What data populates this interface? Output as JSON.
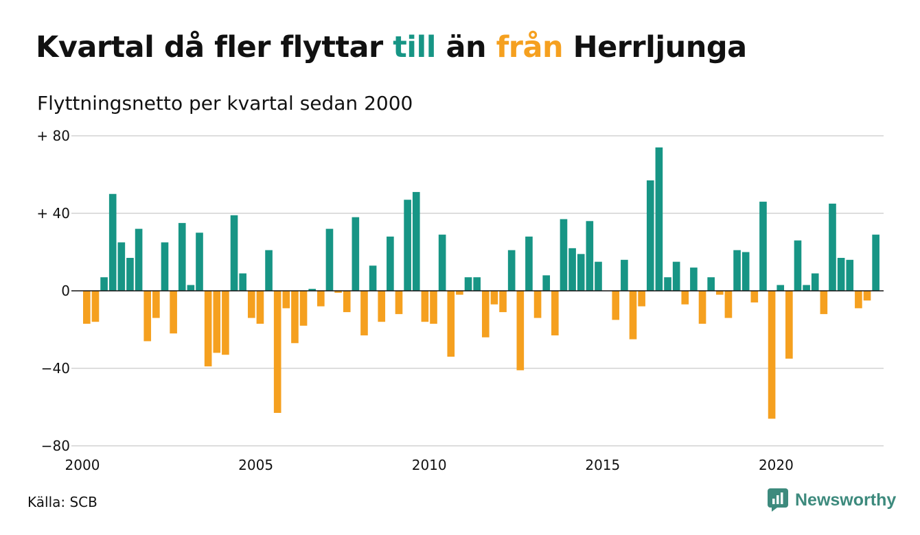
{
  "title": {
    "part1": "Kvartal då fler flyttar ",
    "pos_word": "till",
    "part2": " än ",
    "neg_word": "från",
    "part3": " Herrljunga"
  },
  "subtitle": "Flyttningsnetto per kvartal sedan 2000",
  "source": "Källa: SCB",
  "brand": "Newsworthy",
  "colors": {
    "positive": "#179585",
    "negative": "#f5a01f",
    "grid": "#dddddd",
    "axis": "#111111",
    "brand": "#3d8a7d"
  },
  "chart_data": {
    "type": "bar",
    "x_start": "2000 Q1",
    "frequency": "quarterly",
    "ylim": [
      -80,
      80
    ],
    "yticks": [
      80,
      40,
      0,
      -40,
      -80
    ],
    "ytick_labels": [
      "+ 80",
      "+ 40",
      "0",
      "−40",
      "−80"
    ],
    "xticks": [
      "2000",
      "2005",
      "2010",
      "2015",
      "2020"
    ],
    "grid": true,
    "values": [
      -17,
      -16,
      7,
      50,
      25,
      17,
      32,
      -26,
      -14,
      25,
      -22,
      35,
      3,
      30,
      -39,
      -32,
      -33,
      39,
      9,
      -14,
      -17,
      21,
      -63,
      -9,
      -27,
      -18,
      1,
      -8,
      32,
      -1,
      -11,
      38,
      -23,
      13,
      -16,
      28,
      -12,
      47,
      51,
      -16,
      -17,
      29,
      -34,
      -2,
      7,
      7,
      -24,
      -7,
      -11,
      21,
      -41,
      28,
      -14,
      8,
      -23,
      37,
      22,
      19,
      36,
      15,
      0,
      -15,
      16,
      -25,
      -8,
      57,
      74,
      7,
      15,
      -7,
      12,
      -17,
      7,
      -2,
      -14,
      21,
      20,
      -6,
      46,
      -66,
      3,
      -35,
      26,
      3,
      9,
      -12,
      45,
      17,
      16,
      -9,
      -5,
      29
    ]
  }
}
